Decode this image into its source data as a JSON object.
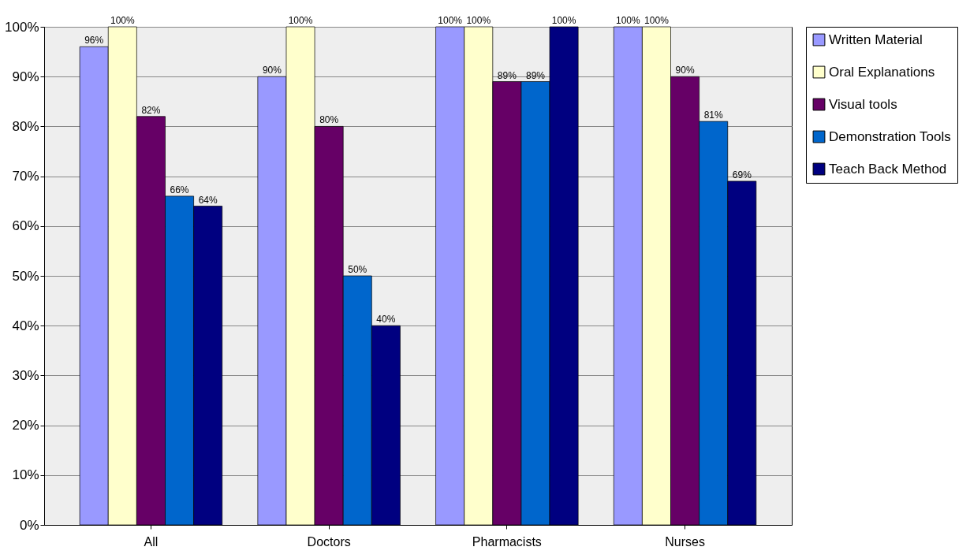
{
  "chart_data": {
    "type": "bar",
    "categories": [
      "All",
      "Doctors",
      "Pharmacists",
      "Nurses"
    ],
    "series": [
      {
        "name": "Written Material",
        "color": "#9999ff",
        "values": [
          96,
          90,
          100,
          100
        ],
        "value_labels": [
          "96%",
          "90%",
          "100%",
          "100%"
        ]
      },
      {
        "name": "Oral Explanations",
        "color": "#ffffcc",
        "values": [
          100,
          100,
          100,
          100
        ],
        "value_labels": [
          "100%",
          "100%",
          "100%",
          "100%"
        ]
      },
      {
        "name": "Visual tools",
        "color": "#660066",
        "values": [
          82,
          80,
          89,
          90
        ],
        "value_labels": [
          "82%",
          "80%",
          "89%",
          "90%"
        ]
      },
      {
        "name": "Demonstration Tools",
        "color": "#0066cc",
        "values": [
          66,
          50,
          89,
          81
        ],
        "value_labels": [
          "66%",
          "50%",
          "89%",
          "81%"
        ]
      },
      {
        "name": "Teach Back Method",
        "color": "#000080",
        "values": [
          64,
          40,
          100,
          69
        ],
        "value_labels": [
          "64%",
          "40%",
          "100%",
          "69%"
        ]
      }
    ],
    "ylim": [
      0,
      100
    ],
    "yticks": [
      {
        "value": 0,
        "label": "0%"
      },
      {
        "value": 10,
        "label": "10%"
      },
      {
        "value": 20,
        "label": "20%"
      },
      {
        "value": 30,
        "label": "30%"
      },
      {
        "value": 40,
        "label": "40%"
      },
      {
        "value": 50,
        "label": "50%"
      },
      {
        "value": 60,
        "label": "60%"
      },
      {
        "value": 70,
        "label": "70%"
      },
      {
        "value": 80,
        "label": "80%"
      },
      {
        "value": 90,
        "label": "90%"
      },
      {
        "value": 100,
        "label": "100%"
      }
    ],
    "grid": "y",
    "legend": "right"
  }
}
